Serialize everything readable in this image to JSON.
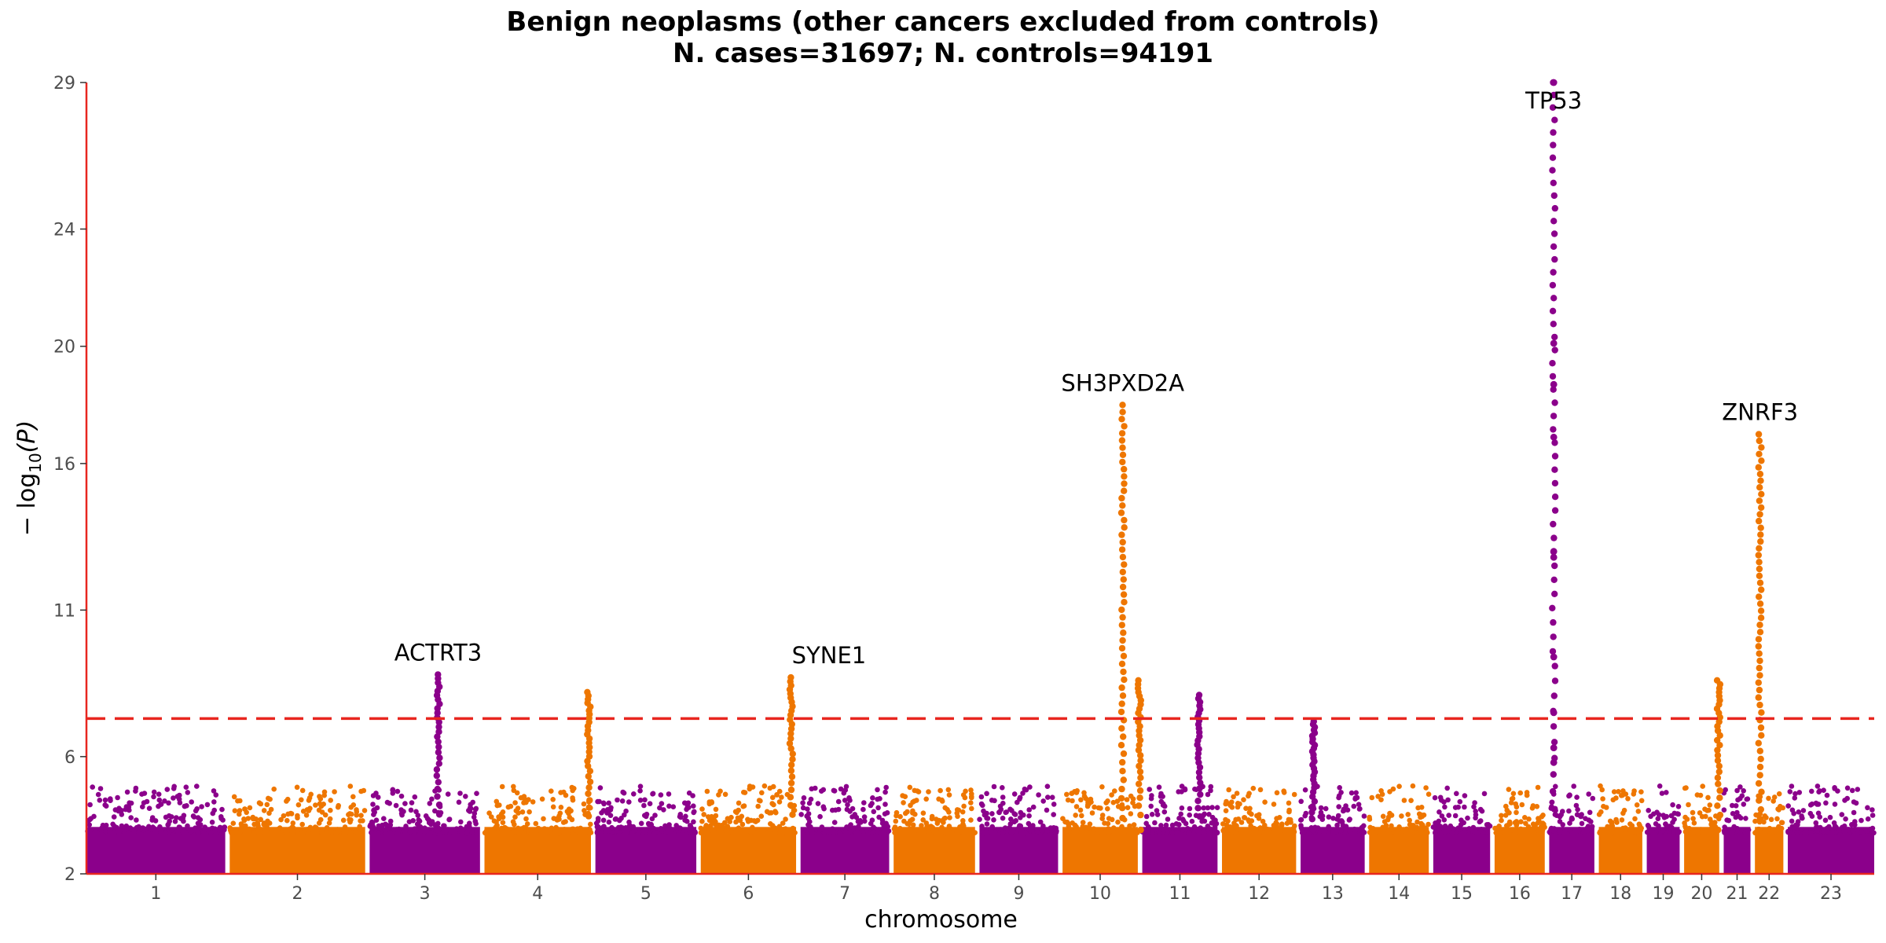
{
  "chart_data": {
    "type": "scatter",
    "title": "Benign neoplasms (other cancers excluded from controls)",
    "subtitle": "N. cases=31697; N. controls=94191",
    "xlabel": "chromosome",
    "ylabel_parts": {
      "main": "− log",
      "sub": "10",
      "arg": "(P)"
    },
    "yticks": [
      2,
      6,
      11,
      16,
      20,
      24,
      29
    ],
    "ylim": [
      2,
      29
    ],
    "threshold": 7.3,
    "colors": {
      "odd": "#8B008B",
      "even": "#EE7600",
      "threshold": "#E8261F",
      "axis": "#E8261F"
    },
    "chromosomes": [
      {
        "label": "1",
        "size": 249
      },
      {
        "label": "2",
        "size": 243
      },
      {
        "label": "3",
        "size": 198
      },
      {
        "label": "4",
        "size": 191
      },
      {
        "label": "5",
        "size": 181
      },
      {
        "label": "6",
        "size": 171
      },
      {
        "label": "7",
        "size": 159
      },
      {
        "label": "8",
        "size": 146
      },
      {
        "label": "9",
        "size": 141
      },
      {
        "label": "10",
        "size": 135
      },
      {
        "label": "11",
        "size": 135
      },
      {
        "label": "12",
        "size": 133
      },
      {
        "label": "13",
        "size": 115
      },
      {
        "label": "14",
        "size": 107
      },
      {
        "label": "15",
        "size": 102
      },
      {
        "label": "16",
        "size": 90
      },
      {
        "label": "17",
        "size": 81
      },
      {
        "label": "18",
        "size": 78
      },
      {
        "label": "19",
        "size": 59
      },
      {
        "label": "20",
        "size": 63
      },
      {
        "label": "21",
        "size": 48
      },
      {
        "label": "22",
        "size": 51
      },
      {
        "label": "23",
        "size": 155
      }
    ],
    "peaks": [
      {
        "chrom": "3",
        "pos": 0.62,
        "max": 8.8,
        "label": "ACTRT3"
      },
      {
        "chrom": "4",
        "pos": 0.98,
        "max": 8.2,
        "label": ""
      },
      {
        "chrom": "6",
        "pos": 0.95,
        "max": 8.7,
        "label": "SYNE1"
      },
      {
        "chrom": "10",
        "pos": 0.8,
        "max": 18.0,
        "label": "SH3PXD2A"
      },
      {
        "chrom": "10",
        "pos": 1.02,
        "max": 8.6,
        "label": ""
      },
      {
        "chrom": "11",
        "pos": 0.75,
        "max": 8.1,
        "label": ""
      },
      {
        "chrom": "13",
        "pos": 0.2,
        "max": 7.2,
        "label": ""
      },
      {
        "chrom": "17",
        "pos": 0.1,
        "max": 29.0,
        "label": "TP53"
      },
      {
        "chrom": "20",
        "pos": 0.98,
        "max": 8.6,
        "label": ""
      },
      {
        "chrom": "22",
        "pos": 0.18,
        "max": 17.0,
        "label": "ZNRF3"
      }
    ]
  }
}
